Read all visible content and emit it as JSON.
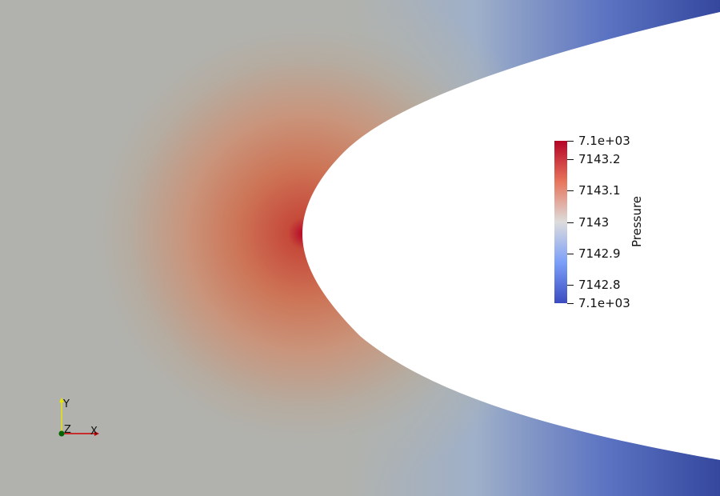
{
  "view": {
    "background": "#b1b2ad",
    "high_color": "#b40426",
    "low_color": "#3b4cc0",
    "body_color": "#ffffff"
  },
  "colorbar": {
    "title": "Pressure",
    "colormap": "Cool to Warm",
    "ticks": [
      {
        "label": "7.1e+03",
        "value": 7143.26
      },
      {
        "label": "7143.2",
        "value": 7143.2
      },
      {
        "label": "7143.1",
        "value": 7143.1
      },
      {
        "label": "7143",
        "value": 7143.0
      },
      {
        "label": "7142.9",
        "value": 7142.9
      },
      {
        "label": "7142.8",
        "value": 7142.8
      },
      {
        "label": "7.1e+03",
        "value": 7142.74
      }
    ]
  },
  "orientation_axes": {
    "x_label": "X",
    "y_label": "Y",
    "z_label": "Z",
    "x_color": "#cc0000",
    "y_color": "#e6e600",
    "z_color": "#006400"
  }
}
